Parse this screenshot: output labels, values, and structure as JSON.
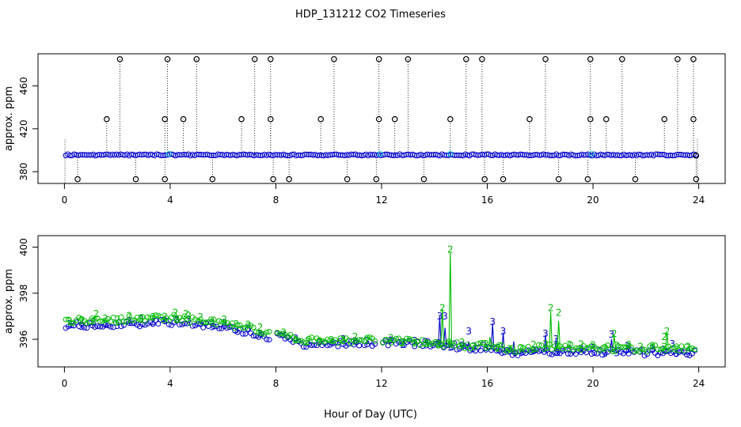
{
  "title": "HDP_131212  CO2 Timeseries",
  "xlabel": "Hour of Day (UTC)",
  "colors": {
    "top_markers": "#000000",
    "blue_series": "#0000cc",
    "green_series": "#00bb00",
    "cyan_highlight": "#00cccc",
    "box": "#000000"
  },
  "chart_data": [
    {
      "type": "scatter",
      "name": "top-panel",
      "ylabel": "approx. ppm",
      "xlim": [
        -1,
        25
      ],
      "ylim": [
        369,
        490
      ],
      "xticks": [
        0,
        4,
        8,
        12,
        16,
        20,
        24
      ],
      "yticks": [
        380,
        420,
        460
      ],
      "baseline_ppm": 395.6,
      "flag_high_points": [
        [
          1.6,
          429
        ],
        [
          2.1,
          485
        ],
        [
          3.8,
          429
        ],
        [
          3.9,
          485
        ],
        [
          4.5,
          429
        ],
        [
          5.0,
          485
        ],
        [
          6.7,
          429
        ],
        [
          7.2,
          485
        ],
        [
          7.8,
          485
        ],
        [
          7.8,
          429
        ],
        [
          9.7,
          429
        ],
        [
          10.2,
          485
        ],
        [
          11.9,
          429
        ],
        [
          11.9,
          485
        ],
        [
          12.5,
          429
        ],
        [
          13.0,
          485
        ],
        [
          14.6,
          429
        ],
        [
          15.2,
          485
        ],
        [
          15.8,
          485
        ],
        [
          17.6,
          429
        ],
        [
          18.2,
          485
        ],
        [
          19.9,
          485
        ],
        [
          19.9,
          429
        ],
        [
          20.5,
          429
        ],
        [
          21.1,
          485
        ],
        [
          22.7,
          429
        ],
        [
          23.2,
          485
        ],
        [
          23.8,
          485
        ],
        [
          23.8,
          429
        ]
      ],
      "flag_low_points": [
        [
          0.5,
          373
        ],
        [
          2.7,
          373
        ],
        [
          3.8,
          373
        ],
        [
          5.6,
          373
        ],
        [
          7.9,
          373
        ],
        [
          8.5,
          373
        ],
        [
          10.7,
          373
        ],
        [
          11.8,
          373
        ],
        [
          13.6,
          373
        ],
        [
          15.9,
          373
        ],
        [
          16.6,
          373
        ],
        [
          18.7,
          373
        ],
        [
          19.8,
          373
        ],
        [
          21.6,
          373
        ],
        [
          23.9,
          373
        ]
      ],
      "other_points": [
        [
          23.9,
          395
        ]
      ]
    },
    {
      "type": "scatter",
      "name": "bottom-panel",
      "ylabel": "approx. ppm",
      "xlim": [
        -1,
        25
      ],
      "ylim": [
        394.8,
        400.5
      ],
      "xticks": [
        0,
        4,
        8,
        12,
        16,
        20,
        24
      ],
      "yticks": [
        396,
        398,
        400
      ],
      "gaps_hours": [
        [
          7.75,
          8.0
        ],
        [
          11.75,
          12.0
        ]
      ],
      "series": [
        {
          "name": "series-3",
          "symbol": "3",
          "color": "#0000cc",
          "baseline": [
            [
              0,
              396.6
            ],
            [
              2,
              396.65
            ],
            [
              4,
              396.75
            ],
            [
              6,
              396.55
            ],
            [
              7.7,
              396.1
            ],
            [
              8.1,
              396.15
            ],
            [
              9,
              395.8
            ],
            [
              12,
              395.85
            ],
            [
              14,
              395.8
            ],
            [
              15.5,
              395.6
            ],
            [
              16,
              395.65
            ],
            [
              17,
              395.35
            ],
            [
              19,
              395.5
            ],
            [
              20,
              395.45
            ],
            [
              24,
              395.4
            ]
          ],
          "spikes": [
            [
              14.2,
              397.0
            ],
            [
              14.4,
              396.5
            ],
            [
              15.3,
              395.9
            ],
            [
              16.2,
              396.7
            ],
            [
              16.6,
              396.3
            ],
            [
              17.0,
              395.9
            ],
            [
              18.2,
              396.2
            ],
            [
              18.6,
              396.0
            ],
            [
              20.7,
              396.0
            ],
            [
              21.3,
              395.7
            ]
          ],
          "labelled_points": [
            [
              14.2,
              397.0
            ],
            [
              14.4,
              397.0
            ],
            [
              15.3,
              396.35
            ],
            [
              16.2,
              396.75
            ],
            [
              16.6,
              396.35
            ],
            [
              18.2,
              396.25
            ],
            [
              18.6,
              396.0
            ],
            [
              20.7,
              396.2
            ],
            [
              21.3,
              395.7
            ],
            [
              23.0,
              395.8
            ]
          ]
        },
        {
          "name": "series-2",
          "symbol": "2",
          "color": "#00bb00",
          "baseline": [
            [
              0,
              396.8
            ],
            [
              2,
              396.85
            ],
            [
              4,
              396.95
            ],
            [
              6,
              396.7
            ],
            [
              7.7,
              396.3
            ],
            [
              8.1,
              396.25
            ],
            [
              9,
              395.95
            ],
            [
              12,
              395.95
            ],
            [
              14,
              395.85
            ],
            [
              15.5,
              395.7
            ],
            [
              16,
              395.75
            ],
            [
              17,
              395.55
            ],
            [
              19,
              395.7
            ],
            [
              20,
              395.6
            ],
            [
              24,
              395.6
            ]
          ],
          "spikes": [
            [
              14.3,
              397.3
            ],
            [
              14.6,
              399.8
            ],
            [
              18.4,
              397.2
            ],
            [
              18.7,
              396.8
            ],
            [
              20.8,
              396.2
            ],
            [
              22.8,
              396.3
            ],
            [
              16.1,
              396.1
            ]
          ],
          "labelled_points": [
            [
              1.2,
              397.1
            ],
            [
              14.3,
              397.35
            ],
            [
              14.6,
              399.9
            ],
            [
              18.4,
              397.35
            ],
            [
              18.7,
              397.15
            ],
            [
              20.8,
              396.25
            ],
            [
              22.8,
              396.35
            ],
            [
              22.7,
              396.1
            ],
            [
              4.2,
              397.15
            ],
            [
              4.6,
              397.1
            ]
          ]
        }
      ]
    }
  ]
}
